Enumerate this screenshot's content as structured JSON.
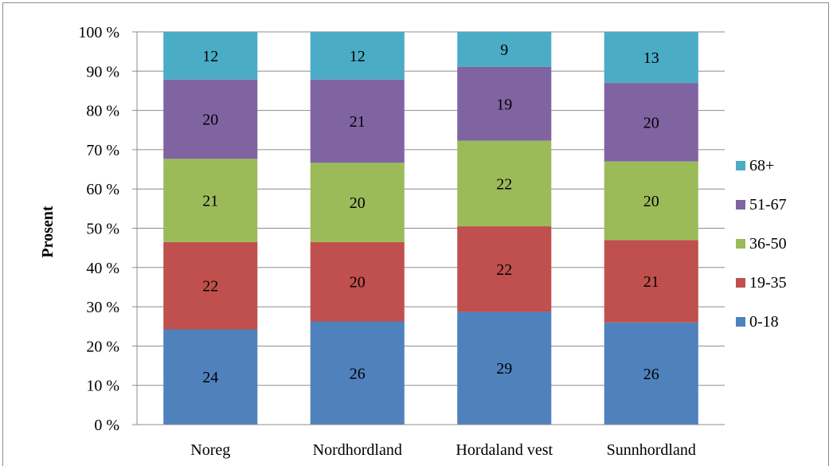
{
  "chart_data": {
    "type": "bar",
    "stacked": true,
    "percent_stacked": true,
    "categories": [
      "Noreg",
      "Nordhordland",
      "Hordaland vest",
      "Sunnhordland"
    ],
    "series": [
      {
        "name": "0-18",
        "values": [
          24,
          26,
          29,
          26
        ],
        "color": "#4f81bd"
      },
      {
        "name": "19-35",
        "values": [
          22,
          20,
          22,
          21
        ],
        "color": "#c0504d"
      },
      {
        "name": "36-50",
        "values": [
          21,
          20,
          22,
          20
        ],
        "color": "#9bbb59"
      },
      {
        "name": "51-67",
        "values": [
          20,
          21,
          19,
          20
        ],
        "color": "#8064a2"
      },
      {
        "name": "68+",
        "values": [
          12,
          12,
          9,
          13
        ],
        "color": "#4bacc6"
      }
    ],
    "ylabel": "Prosent",
    "ylim": [
      0,
      100
    ],
    "yticks": [
      "0 %",
      "10 %",
      "20 %",
      "30 %",
      "40 %",
      "50 %",
      "60 %",
      "70 %",
      "80 %",
      "90 %",
      "100 %"
    ],
    "grid": true,
    "legend_position": "right",
    "legend_order": [
      "68+",
      "51-67",
      "36-50",
      "19-35",
      "0-18"
    ]
  }
}
